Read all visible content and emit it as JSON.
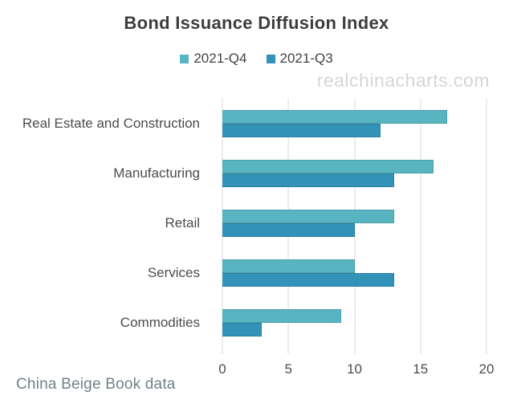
{
  "title": "Bond Issuance Diffusion Index",
  "watermark": "realchinacharts.com",
  "footer": "China Beige Book data",
  "colors": {
    "series_q4": "#58b4c0",
    "series_q3": "#3292b8",
    "title_text": "#3d3d3d",
    "axis_text": "#4c4c4c",
    "gridline": "#d8d8d8",
    "watermark_text": "#d3d7d8",
    "footer_text": "#6e8287"
  },
  "chart_data": {
    "type": "bar",
    "orientation": "horizontal",
    "title": "Bond Issuance Diffusion Index",
    "categories": [
      "Real Estate and Construction",
      "Manufacturing",
      "Retail",
      "Services",
      "Commodities"
    ],
    "series": [
      {
        "name": "2021-Q4",
        "color": "#58b4c0",
        "values": [
          17,
          16,
          13,
          10,
          9
        ]
      },
      {
        "name": "2021-Q3",
        "color": "#3292b8",
        "values": [
          12,
          13,
          10,
          13,
          3
        ]
      }
    ],
    "xlabel": "",
    "ylabel": "",
    "xlim": [
      0,
      20
    ],
    "xticks": [
      0,
      5,
      10,
      15,
      20
    ],
    "grid": true,
    "legend_position": "top",
    "annotations": [
      "realchinacharts.com",
      "China Beige Book data"
    ]
  }
}
